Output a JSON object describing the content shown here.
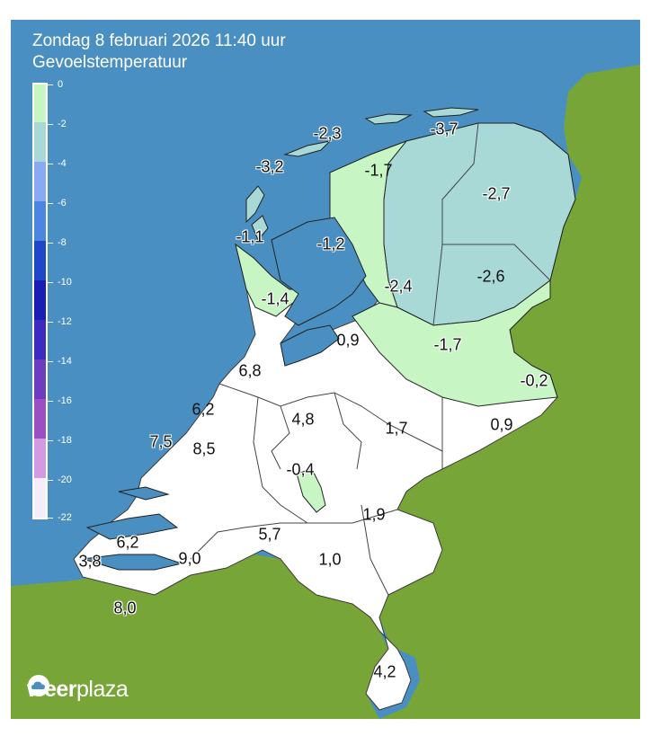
{
  "header": {
    "datetime": "Zondag 8 februari 2026 11:40 uur",
    "parameter": "Gevoelstemperatuur"
  },
  "colors": {
    "sea": "#4a8fc1",
    "foreign_land": "#77a537",
    "land_base": "#ffffff",
    "legend": [
      "#ffffff",
      "#c7f5c3",
      "#a8d9d6",
      "#8aa9f3",
      "#4b86e0",
      "#2147c9",
      "#1b1bb6",
      "#3c2bbf",
      "#6d3dbf",
      "#9a4fc3",
      "#d29ae0",
      "#e3c9ee"
    ]
  },
  "legend": {
    "ticks": [
      "0",
      "-2",
      "-4",
      "-6",
      "-8",
      "-10",
      "-12",
      "-14",
      "-16",
      "-18",
      "-20",
      "-22"
    ]
  },
  "map_values": [
    "-2,3",
    "-3,7",
    "-3,2",
    "-1,7",
    "-2,7",
    "-1,1",
    "-1,2",
    "-2,4",
    "-2,6",
    "-1,4",
    "0,9",
    "-1,7",
    "6,8",
    "-0,2",
    "6,2",
    "4,8",
    "1,7",
    "0,9",
    "7,5",
    "8,5",
    "-0,4",
    "1,9",
    "6,2",
    "5,7",
    "3,8",
    "9,0",
    "1,0",
    "8,0",
    "4,2"
  ],
  "brand": {
    "name_bold": "weer",
    "name_light": "plaza",
    "icon": "cloud-sun-logo-icon"
  }
}
